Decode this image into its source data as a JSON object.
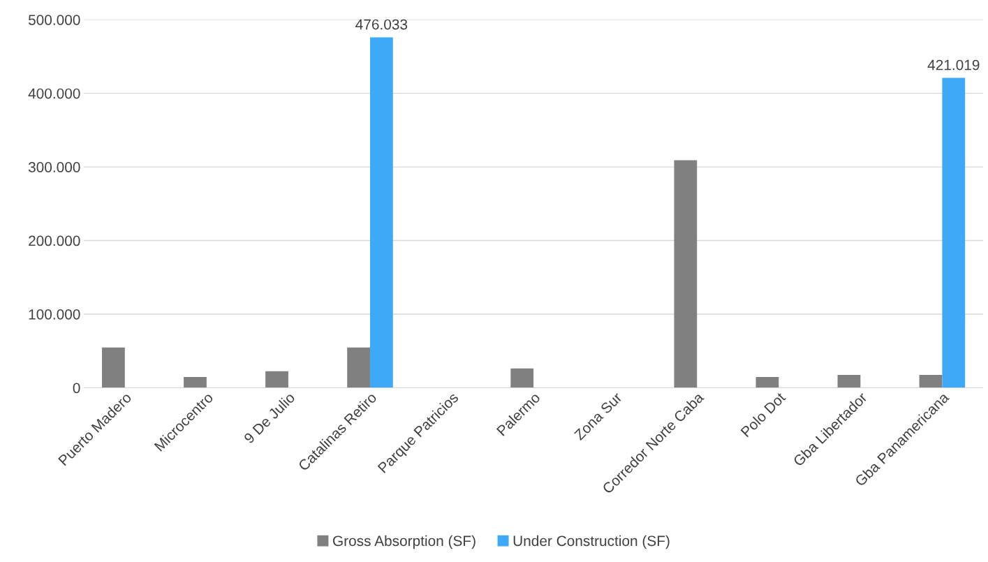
{
  "chart_data": {
    "type": "bar",
    "categories": [
      "Puerto Madero",
      "Microcentro",
      "9 De Julio",
      "Catalinas Retiro",
      "Parque Patricios",
      "Palermo",
      "Zona Sur",
      "Corredor Norte Caba",
      "Polo Dot",
      "Gba Libertador",
      "Gba Panamericana"
    ],
    "series": [
      {
        "name": "Gross Absorption (SF)",
        "color": "#808080",
        "values": [
          54600,
          14600,
          22400,
          54600,
          0,
          26300,
          0,
          309000,
          14600,
          17500,
          17500
        ]
      },
      {
        "name": "Under Construction (SF)",
        "color": "#3eaaf7",
        "values": [
          null,
          null,
          null,
          476033,
          null,
          null,
          null,
          null,
          null,
          null,
          421019
        ],
        "value_labels": [
          null,
          null,
          null,
          "476.033",
          null,
          null,
          null,
          null,
          null,
          null,
          "421.019"
        ]
      }
    ],
    "ylim": [
      0,
      500000
    ],
    "yticks": [
      0,
      {
        "value": 100000,
        "label": "100.000"
      },
      {
        "value": 200000,
        "label": "200.000"
      },
      {
        "value": 300000,
        "label": "300.000"
      },
      {
        "value": 400000,
        "label": "400.000"
      },
      {
        "value": 500000,
        "label": "500.000"
      }
    ],
    "grid": "y",
    "legend": "bottom"
  }
}
